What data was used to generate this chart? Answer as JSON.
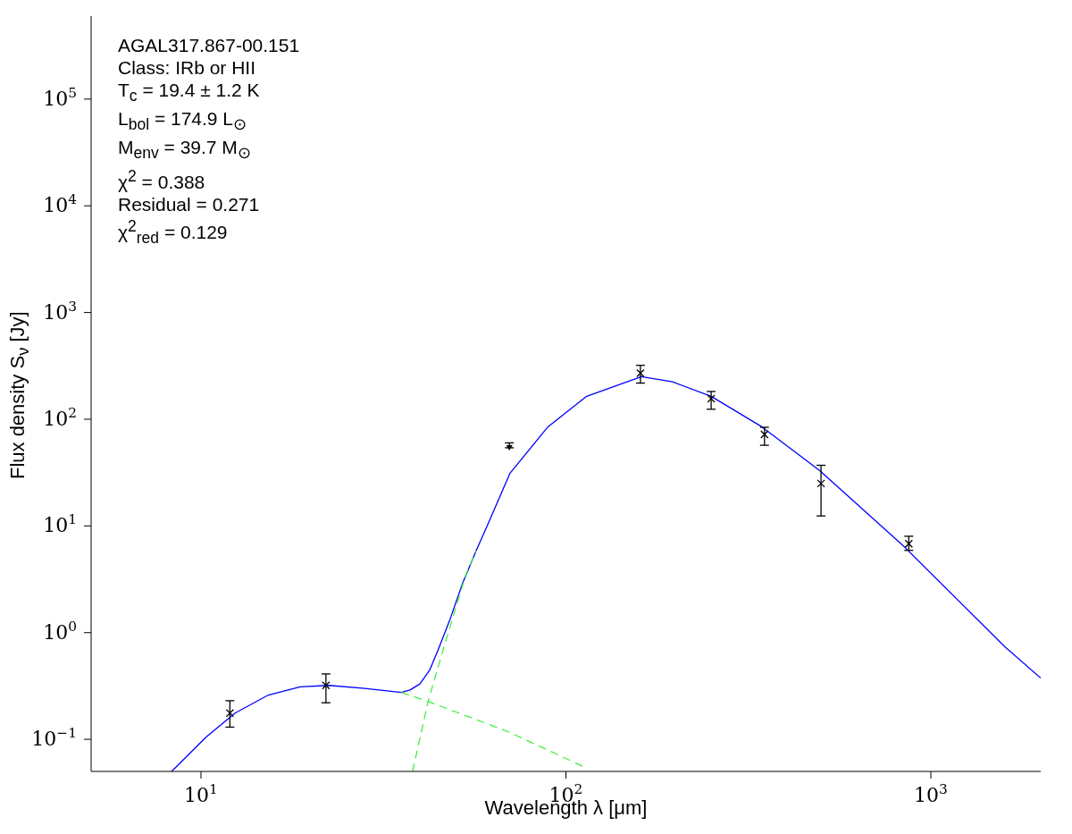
{
  "chart_data": {
    "type": "line",
    "xlabel": "Wavelength λ [μm]",
    "ylabel": "Flux density S$_{ν}$ [Jy]",
    "log": "xy",
    "xlim": [
      5,
      2000
    ],
    "xticks": [
      {
        "value": 10,
        "label": "10$^{1}$"
      },
      {
        "value": 100,
        "label": "10$^{2}$"
      },
      {
        "value": 1000,
        "label": "10$^{3}$"
      }
    ],
    "ylim": [
      0.05,
      600000
    ],
    "yticks": [
      {
        "value": 0.1,
        "label": "10$^{−1}$"
      },
      {
        "value": 1,
        "label": "10$^{0}$"
      },
      {
        "value": 10,
        "label": "10$^{1}$"
      },
      {
        "value": 100,
        "label": "10$^{2}$"
      },
      {
        "value": 1000,
        "label": "10$^{3}$"
      },
      {
        "value": 10000,
        "label": "10$^{4}$"
      },
      {
        "value": 100000,
        "label": "10$^{5}$"
      }
    ],
    "annotations": [
      "AGAL317.867-00.151",
      "Class: IRb or HII",
      "T$_{c}$ = 19.4 ± 1.2 K",
      "L$_{bol}$ = 174.9 L$_{⊙}$",
      "M$_{env}$ = 39.7 M$_{⊙}$",
      "χ$^{2}$ = 0.388",
      "Residual = 0.271",
      "χ$^{2}$$_{red}$ = 0.129"
    ],
    "series": [
      {
        "color": "#0000ff",
        "line_style": "solid",
        "marker": "none",
        "x": [
          8.3,
          8.5,
          10.3,
          12.4,
          15.3,
          18.7,
          22.4,
          28.1,
          35.4,
          37.4,
          39.8,
          42.4,
          44.8,
          48.2,
          52.1,
          56.7,
          61,
          70.2,
          89.3,
          114,
          161,
          196,
          250,
          344,
          496,
          845,
          1592,
          2000
        ],
        "values": [
          0.05,
          0.054,
          0.104,
          0.176,
          0.26,
          0.31,
          0.32,
          0.3,
          0.275,
          0.29,
          0.33,
          0.45,
          0.71,
          1.35,
          2.9,
          5.8,
          10.2,
          31,
          85,
          164,
          250,
          224,
          164,
          85,
          33,
          6.4,
          0.74,
          0.375
        ]
      },
      {
        "color": "#44ee44",
        "line_style": "dashed",
        "marker": "none",
        "x": [
          35.4,
          41.9,
          69,
          111
        ],
        "values": [
          0.275,
          0.226,
          0.119,
          0.056
        ]
      },
      {
        "color": "#44ee44",
        "line_style": "dashed",
        "marker": "none",
        "x": [
          38,
          41.9,
          46.3,
          53.3,
          56.7
        ],
        "values": [
          0.05,
          0.226,
          0.73,
          3.57,
          5.8
        ]
      },
      {
        "type": "scatter",
        "color": "#000000",
        "marker": "cross",
        "x": [
          12,
          22,
          160,
          250,
          350,
          500,
          870
        ],
        "values": [
          0.176,
          0.32,
          270,
          156,
          72,
          25,
          6.8
        ],
        "errors": [
          [
            0.13,
            0.23
          ],
          [
            0.22,
            0.41
          ],
          [
            218,
            320
          ],
          [
            124,
            182
          ],
          [
            57,
            84
          ],
          [
            12.4,
            37
          ],
          [
            5.9,
            8
          ]
        ]
      },
      {
        "type": "scatter",
        "color": "#000000",
        "marker": "triangle",
        "x": [
          70
        ],
        "values": [
          54
        ],
        "errors": [
          [
            54,
            60
          ]
        ]
      }
    ]
  }
}
